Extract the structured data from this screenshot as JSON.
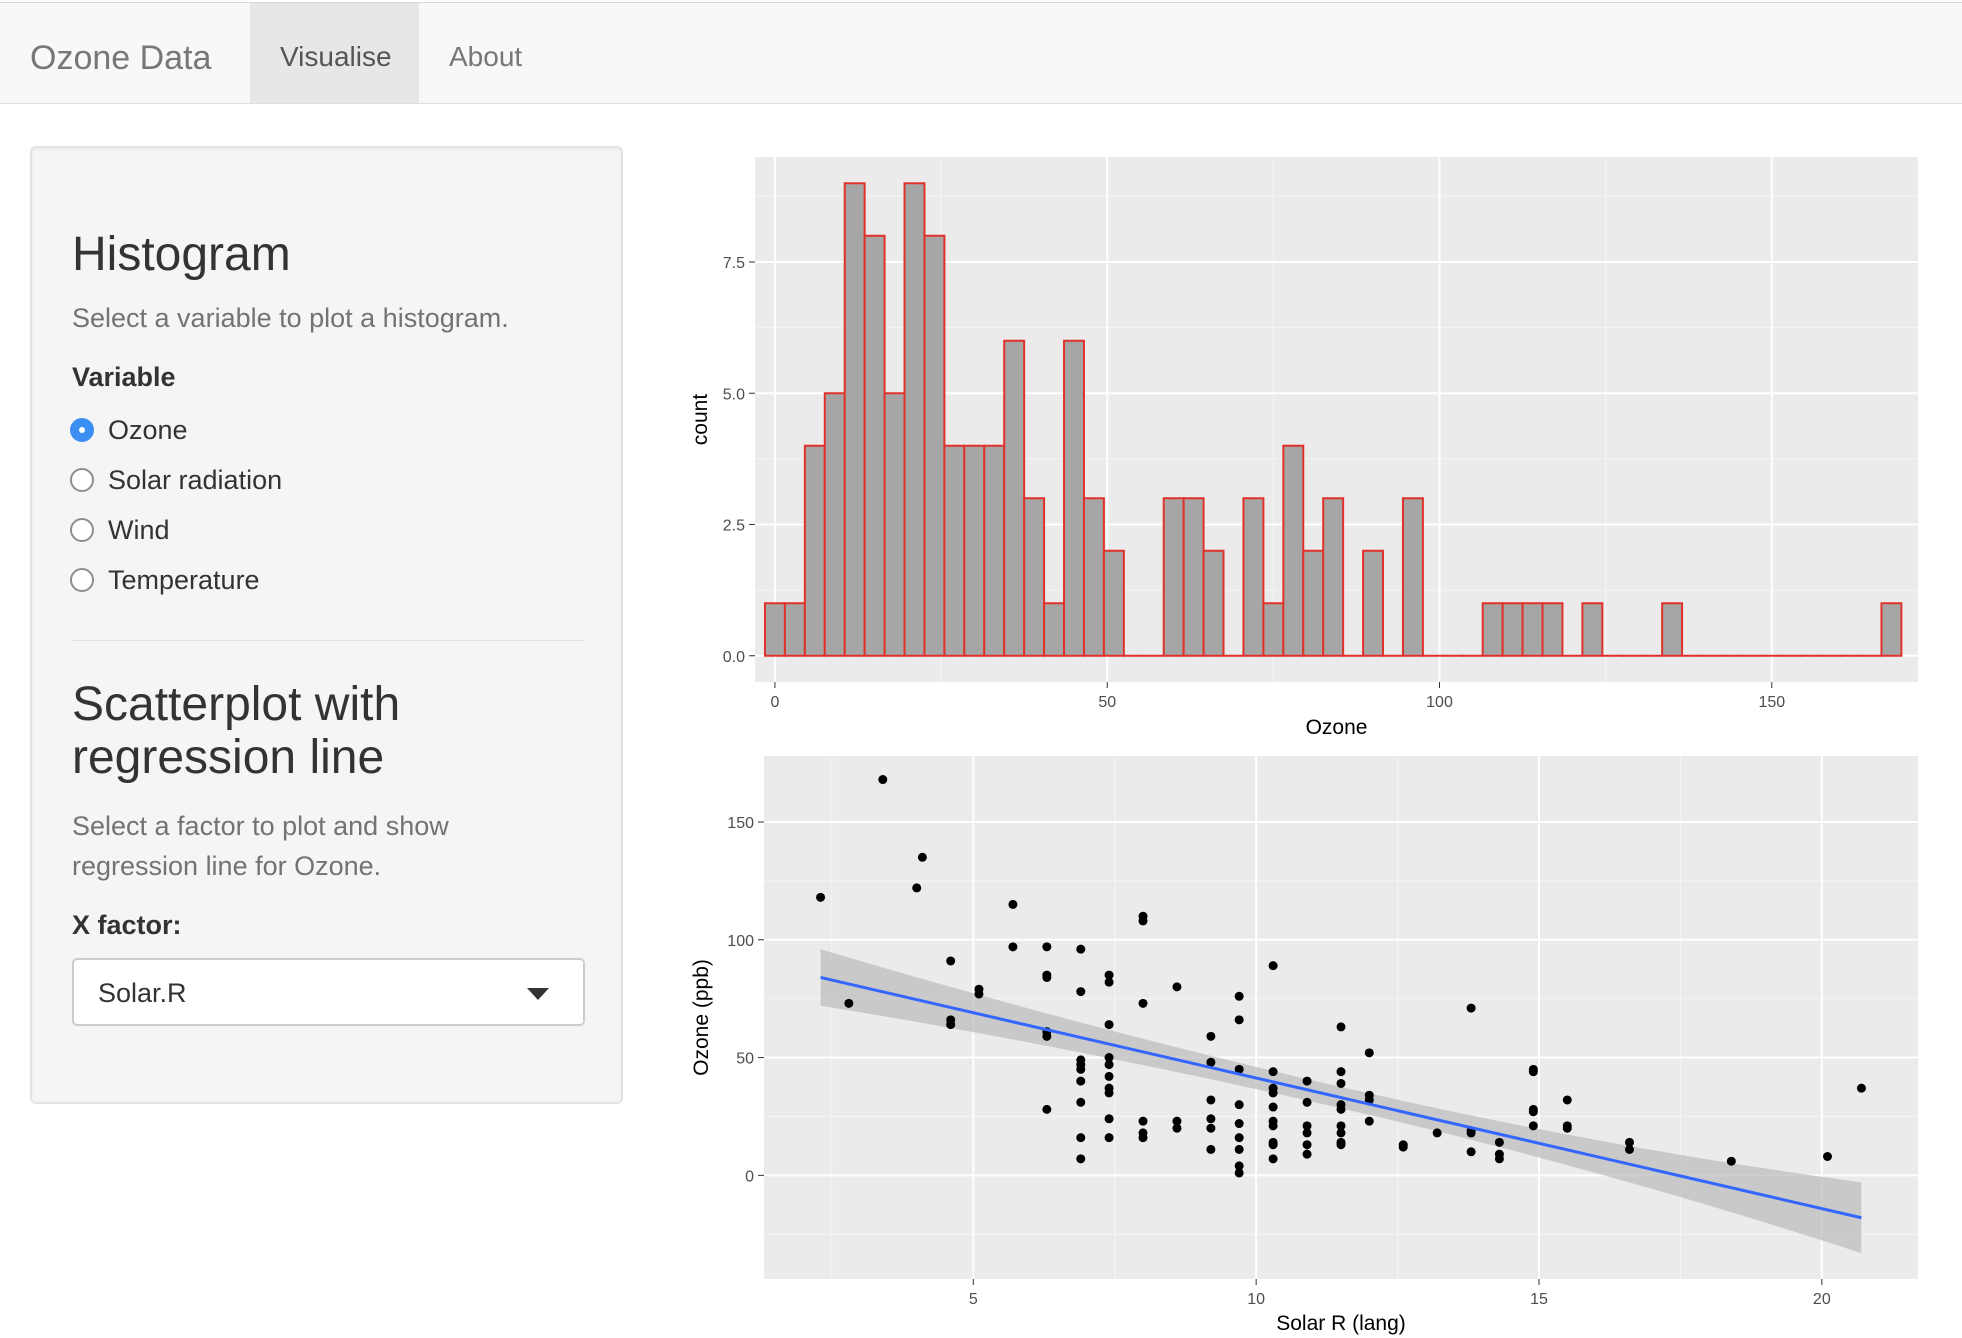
{
  "nav": {
    "brand": "Ozone Data",
    "tabs": [
      {
        "label": "Visualise",
        "active": true
      },
      {
        "label": "About",
        "active": false
      }
    ]
  },
  "sidebar": {
    "histogram": {
      "title": "Histogram",
      "help": "Select a variable to plot a histogram.",
      "variable_label": "Variable",
      "options": [
        {
          "label": "Ozone",
          "checked": true
        },
        {
          "label": "Solar radiation",
          "checked": false
        },
        {
          "label": "Wind",
          "checked": false
        },
        {
          "label": "Temperature",
          "checked": false
        }
      ]
    },
    "scatter": {
      "title_line1": "Scatterplot with",
      "title_line2": "regression line",
      "help_line1": "Select a factor to plot and show",
      "help_line2": "regression line for Ozone.",
      "xfactor_label": "X factor:",
      "xfactor_value": "Solar.R"
    }
  },
  "colors": {
    "accent": "#3b8ff3",
    "panel_bg": "#ebebeb",
    "bar_fill": "#a6a6a6",
    "bar_outline": "#e0322a",
    "regression_line": "#3366ff",
    "confidence_band": "#bdbdbd"
  },
  "chart_data": [
    {
      "type": "bar",
      "xlabel": "Ozone",
      "ylabel": "count",
      "binwidth": 3,
      "bin_starts": [
        -1.5,
        1.5,
        4.5,
        7.5,
        10.5,
        13.5,
        16.5,
        19.5,
        22.5,
        25.5,
        28.5,
        31.5,
        34.5,
        37.5,
        40.5,
        43.5,
        46.5,
        49.5,
        52.5,
        55.5,
        58.5,
        61.5,
        64.5,
        67.5,
        70.5,
        73.5,
        76.5,
        79.5,
        82.5,
        85.5,
        88.5,
        91.5,
        94.5,
        97.5,
        100.5,
        103.5,
        106.5,
        109.5,
        112.5,
        115.5,
        118.5,
        121.5,
        124.5,
        127.5,
        130.5,
        133.5,
        136.5,
        139.5,
        142.5,
        145.5,
        148.5,
        151.5,
        154.5,
        157.5,
        160.5,
        163.5,
        166.5
      ],
      "values": [
        1,
        1,
        4,
        5,
        9,
        8,
        5,
        9,
        8,
        4,
        4,
        4,
        6,
        3,
        1,
        6,
        3,
        2,
        0,
        0,
        3,
        3,
        2,
        0,
        3,
        1,
        4,
        2,
        3,
        0,
        2,
        0,
        3,
        0,
        0,
        0,
        1,
        1,
        1,
        1,
        0,
        1,
        0,
        0,
        0,
        1,
        0,
        0,
        0,
        0,
        0,
        0,
        0,
        0,
        0,
        0,
        1
      ],
      "xlim": [
        -3,
        172
      ],
      "ylim": [
        -0.5,
        9.5
      ],
      "x_ticks": [
        0,
        50,
        100,
        150
      ],
      "y_ticks": [
        "0.0",
        "2.5",
        "5.0",
        "7.5"
      ],
      "grid": true
    },
    {
      "type": "scatter",
      "xlabel": "Solar R (lang)",
      "ylabel": "Ozone (ppb)",
      "xlim": [
        1.3,
        21.7
      ],
      "ylim": [
        -44,
        178
      ],
      "x_ticks": [
        5,
        10,
        15,
        20
      ],
      "y_ticks": [
        0,
        50,
        100,
        150
      ],
      "grid": true,
      "points": [
        [
          2.3,
          118
        ],
        [
          2.8,
          73
        ],
        [
          3.4,
          168
        ],
        [
          4.0,
          122
        ],
        [
          4.1,
          135
        ],
        [
          4.6,
          91
        ],
        [
          4.6,
          66
        ],
        [
          4.6,
          64
        ],
        [
          5.1,
          79
        ],
        [
          5.1,
          77
        ],
        [
          5.7,
          115
        ],
        [
          5.7,
          97
        ],
        [
          6.3,
          97
        ],
        [
          6.3,
          85
        ],
        [
          6.3,
          84
        ],
        [
          6.3,
          61
        ],
        [
          6.3,
          59
        ],
        [
          6.3,
          28
        ],
        [
          6.9,
          96
        ],
        [
          6.9,
          78
        ],
        [
          6.9,
          49
        ],
        [
          6.9,
          47
        ],
        [
          6.9,
          45
        ],
        [
          6.9,
          40
        ],
        [
          6.9,
          31
        ],
        [
          6.9,
          16
        ],
        [
          6.9,
          7
        ],
        [
          7.4,
          85
        ],
        [
          7.4,
          82
        ],
        [
          7.4,
          64
        ],
        [
          7.4,
          50
        ],
        [
          7.4,
          47
        ],
        [
          7.4,
          42
        ],
        [
          7.4,
          37
        ],
        [
          7.4,
          35
        ],
        [
          7.4,
          24
        ],
        [
          7.4,
          16
        ],
        [
          8.0,
          110
        ],
        [
          8.0,
          108
        ],
        [
          8.0,
          73
        ],
        [
          8.0,
          23
        ],
        [
          8.0,
          18
        ],
        [
          8.0,
          16
        ],
        [
          8.6,
          80
        ],
        [
          8.6,
          23
        ],
        [
          8.6,
          20
        ],
        [
          9.2,
          59
        ],
        [
          9.2,
          48
        ],
        [
          9.2,
          32
        ],
        [
          9.2,
          24
        ],
        [
          9.2,
          20
        ],
        [
          9.2,
          11
        ],
        [
          9.7,
          76
        ],
        [
          9.7,
          66
        ],
        [
          9.7,
          45
        ],
        [
          9.7,
          30
        ],
        [
          9.7,
          22
        ],
        [
          9.7,
          16
        ],
        [
          9.7,
          11
        ],
        [
          9.7,
          4
        ],
        [
          9.7,
          1
        ],
        [
          10.3,
          89
        ],
        [
          10.3,
          44
        ],
        [
          10.3,
          37
        ],
        [
          10.3,
          35
        ],
        [
          10.3,
          29
        ],
        [
          10.3,
          23
        ],
        [
          10.3,
          21
        ],
        [
          10.3,
          14
        ],
        [
          10.3,
          13
        ],
        [
          10.3,
          7
        ],
        [
          10.9,
          40
        ],
        [
          10.9,
          31
        ],
        [
          10.9,
          21
        ],
        [
          10.9,
          18
        ],
        [
          10.9,
          13
        ],
        [
          10.9,
          9
        ],
        [
          11.5,
          63
        ],
        [
          11.5,
          44
        ],
        [
          11.5,
          39
        ],
        [
          11.5,
          30
        ],
        [
          11.5,
          28
        ],
        [
          11.5,
          21
        ],
        [
          11.5,
          18
        ],
        [
          11.5,
          14
        ],
        [
          11.5,
          13
        ],
        [
          12.0,
          52
        ],
        [
          12.0,
          34
        ],
        [
          12.0,
          32
        ],
        [
          12.0,
          23
        ],
        [
          12.6,
          13
        ],
        [
          12.6,
          12
        ],
        [
          13.2,
          18
        ],
        [
          13.8,
          71
        ],
        [
          13.8,
          19
        ],
        [
          13.8,
          18
        ],
        [
          13.8,
          10
        ],
        [
          14.3,
          14
        ],
        [
          14.3,
          9
        ],
        [
          14.3,
          7
        ],
        [
          14.9,
          45
        ],
        [
          14.9,
          44
        ],
        [
          14.9,
          28
        ],
        [
          14.9,
          27
        ],
        [
          14.9,
          21
        ],
        [
          15.5,
          32
        ],
        [
          15.5,
          21
        ],
        [
          15.5,
          20
        ],
        [
          16.6,
          14
        ],
        [
          16.6,
          11
        ],
        [
          18.4,
          6
        ],
        [
          20.1,
          8
        ],
        [
          20.7,
          37
        ]
      ],
      "regression": {
        "x": [
          2.3,
          20.7
        ],
        "y": [
          84,
          -18
        ]
      },
      "band_halfwidth": {
        "at_start": 12,
        "at_middle": 4.5,
        "at_end": 15
      }
    }
  ]
}
